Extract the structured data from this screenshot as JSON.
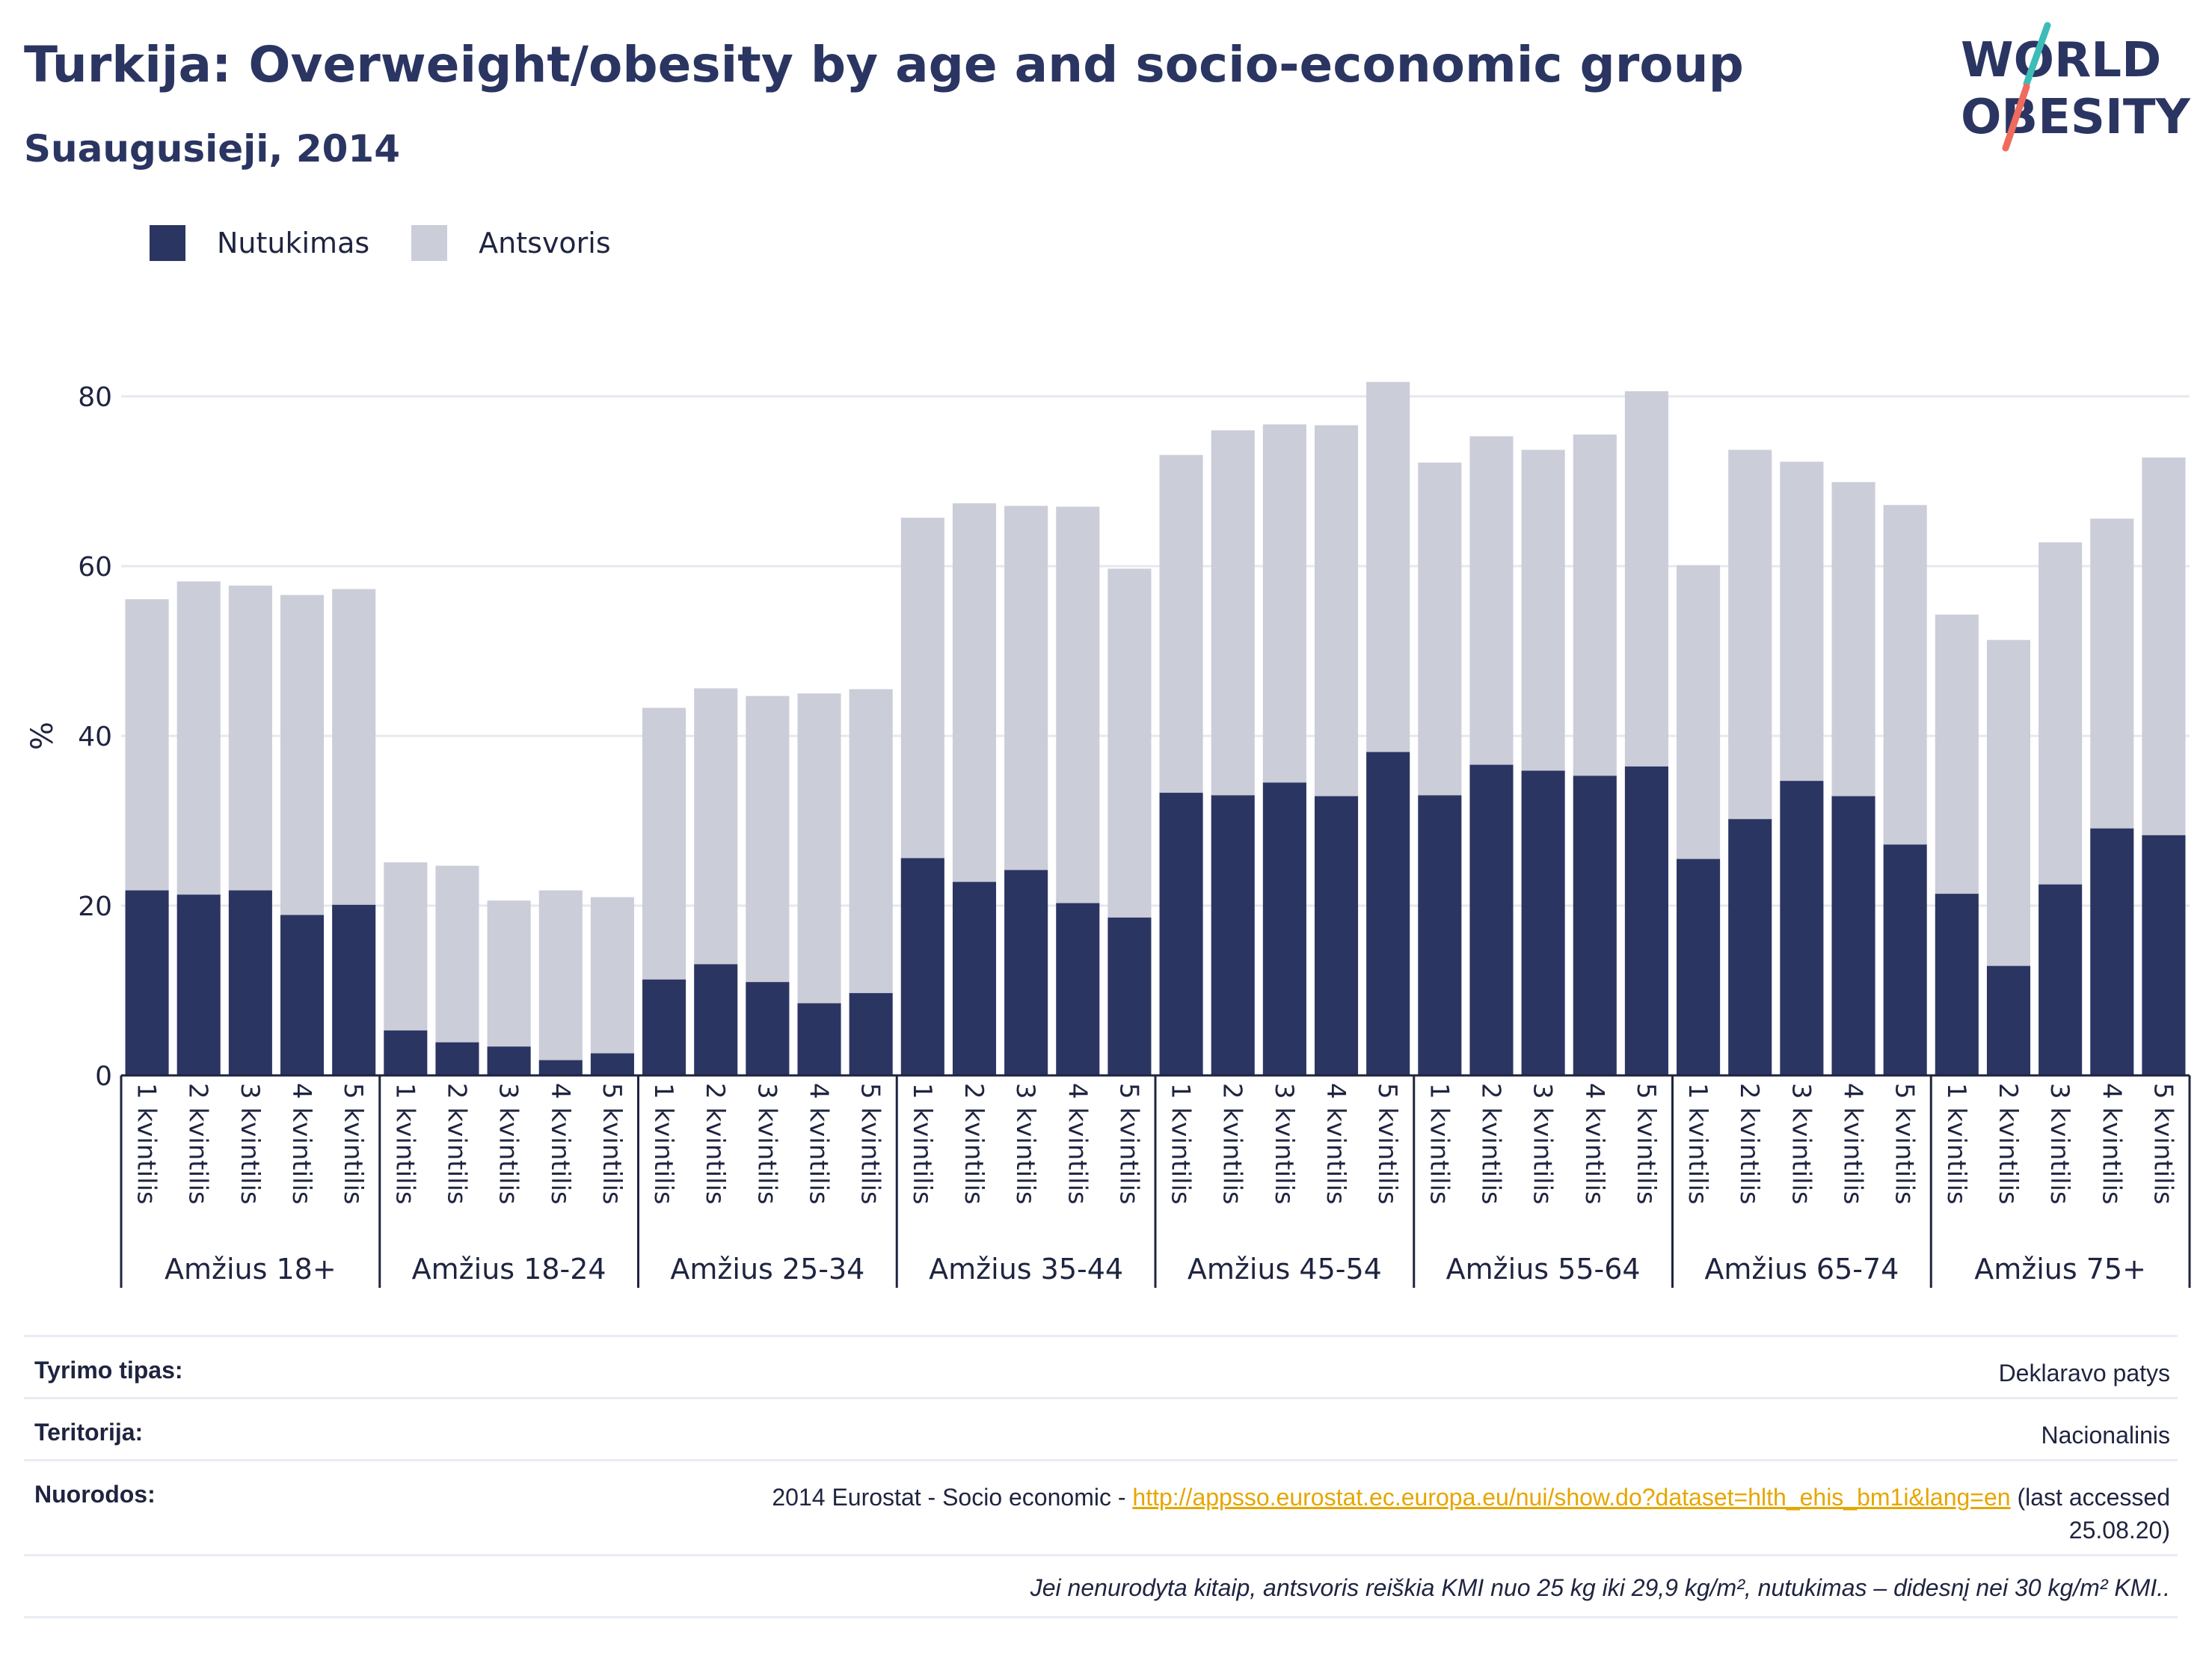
{
  "header": {
    "title": "Turkija: Overweight/obesity by age and socio-economic group",
    "subtitle": "Suaugusieji, 2014",
    "logo_line1": "WORLD",
    "logo_line2": "OBESITY"
  },
  "legend": {
    "obesity_label": "Nutukimas",
    "overweight_label": "Antsvoris"
  },
  "colors": {
    "obesity": "#2b3562",
    "overweight": "#cbcdd9",
    "logo_teal": "#3dbcb8",
    "logo_coral": "#ef6b5d"
  },
  "chart_data": {
    "type": "bar",
    "stacked": true,
    "ylabel": "%",
    "ylim": [
      0,
      85
    ],
    "yticks": [
      0,
      20,
      40,
      60,
      80
    ],
    "grid": true,
    "legend_position": "top-left",
    "quintile_labels": [
      "1 kvintilis",
      "2 kvintilis",
      "3 kvintilis",
      "4 kvintilis",
      "5 kvintilis"
    ],
    "groups": [
      "Amžius 18+",
      "Amžius 18-24",
      "Amžius 25-34",
      "Amžius 35-44",
      "Amžius 45-54",
      "Amžius 55-64",
      "Amžius 65-74",
      "Amžius 75+"
    ],
    "series": [
      {
        "name": "Nutukimas",
        "values": [
          21.8,
          21.3,
          21.8,
          18.9,
          20.1,
          5.3,
          3.9,
          3.4,
          1.8,
          2.6,
          11.3,
          13.1,
          11.0,
          8.5,
          9.7,
          25.6,
          22.8,
          24.2,
          20.3,
          18.6,
          33.3,
          33.0,
          34.5,
          32.9,
          38.1,
          33.0,
          36.6,
          35.9,
          35.3,
          36.4,
          25.5,
          30.2,
          34.7,
          32.9,
          27.2,
          21.4,
          12.9,
          22.5,
          29.1,
          28.3
        ]
      },
      {
        "name": "Antsvoris",
        "values": [
          34.3,
          36.9,
          35.9,
          37.7,
          37.2,
          19.8,
          20.8,
          17.2,
          20.0,
          18.4,
          32.0,
          32.5,
          33.7,
          36.5,
          35.8,
          40.1,
          44.6,
          42.9,
          46.7,
          41.1,
          39.8,
          43.0,
          42.2,
          43.7,
          43.6,
          39.2,
          38.7,
          37.8,
          40.2,
          44.2,
          34.6,
          43.5,
          37.6,
          37.0,
          40.0,
          32.9,
          38.4,
          40.3,
          36.5,
          44.5
        ]
      }
    ]
  },
  "info": {
    "survey_type_label": "Tyrimo tipas:",
    "survey_type_value": "Deklaravo patys",
    "territory_label": "Teritorija:",
    "territory_value": "Nacionalinis",
    "references_label": "Nuorodos:",
    "references_prefix": "2014 Eurostat - Socio economic - ",
    "references_link": "http://appsso.eurostat.ec.europa.eu/nui/show.do?dataset=hlth_ehis_bm1i&lang=en",
    "references_suffix_1": " (last accessed",
    "references_suffix_2": "25.08.20)",
    "footnote": "Jei nenurodyta kitaip, antsvoris reiškia KMI nuo 25 kg iki 29,9 kg/m², nutukimas – didesnį nei 30 kg/m² KMI.."
  }
}
